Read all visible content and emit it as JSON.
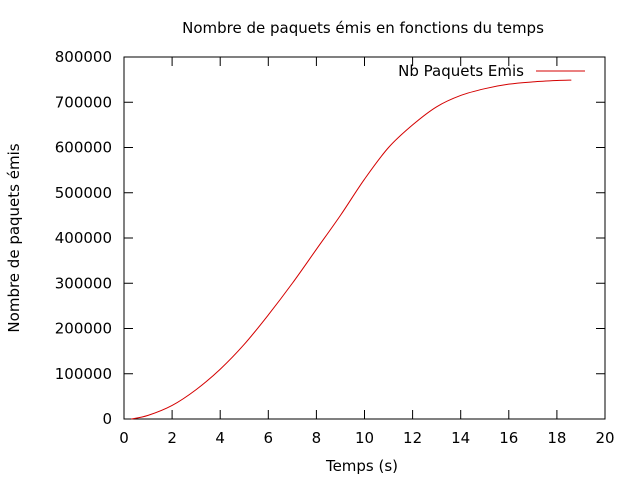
{
  "colors": {
    "series": "#d40000",
    "axis": "#000000",
    "background": "#ffffff"
  },
  "chart_data": {
    "type": "line",
    "title": "Nombre de paquets émis en fonctions du temps",
    "xlabel": "Temps (s)",
    "ylabel": "Nombre de paquets émis",
    "xlim": [
      0,
      20
    ],
    "ylim": [
      0,
      800000
    ],
    "xticks": [
      0,
      2,
      4,
      6,
      8,
      10,
      12,
      14,
      16,
      18,
      20
    ],
    "yticks": [
      0,
      100000,
      200000,
      300000,
      400000,
      500000,
      600000,
      700000,
      800000
    ],
    "grid": false,
    "legend_position": "top-right",
    "series": [
      {
        "name": "Nb Paquets Emis",
        "x": [
          0.3,
          1,
          2,
          3,
          4,
          5,
          6,
          7,
          8,
          9,
          10,
          11,
          12,
          13,
          14,
          15,
          16,
          17,
          18,
          18.6
        ],
        "y": [
          0,
          8000,
          30000,
          65000,
          110000,
          165000,
          230000,
          300000,
          375000,
          450000,
          530000,
          600000,
          650000,
          690000,
          715000,
          730000,
          740000,
          745000,
          748000,
          749000
        ]
      }
    ]
  }
}
